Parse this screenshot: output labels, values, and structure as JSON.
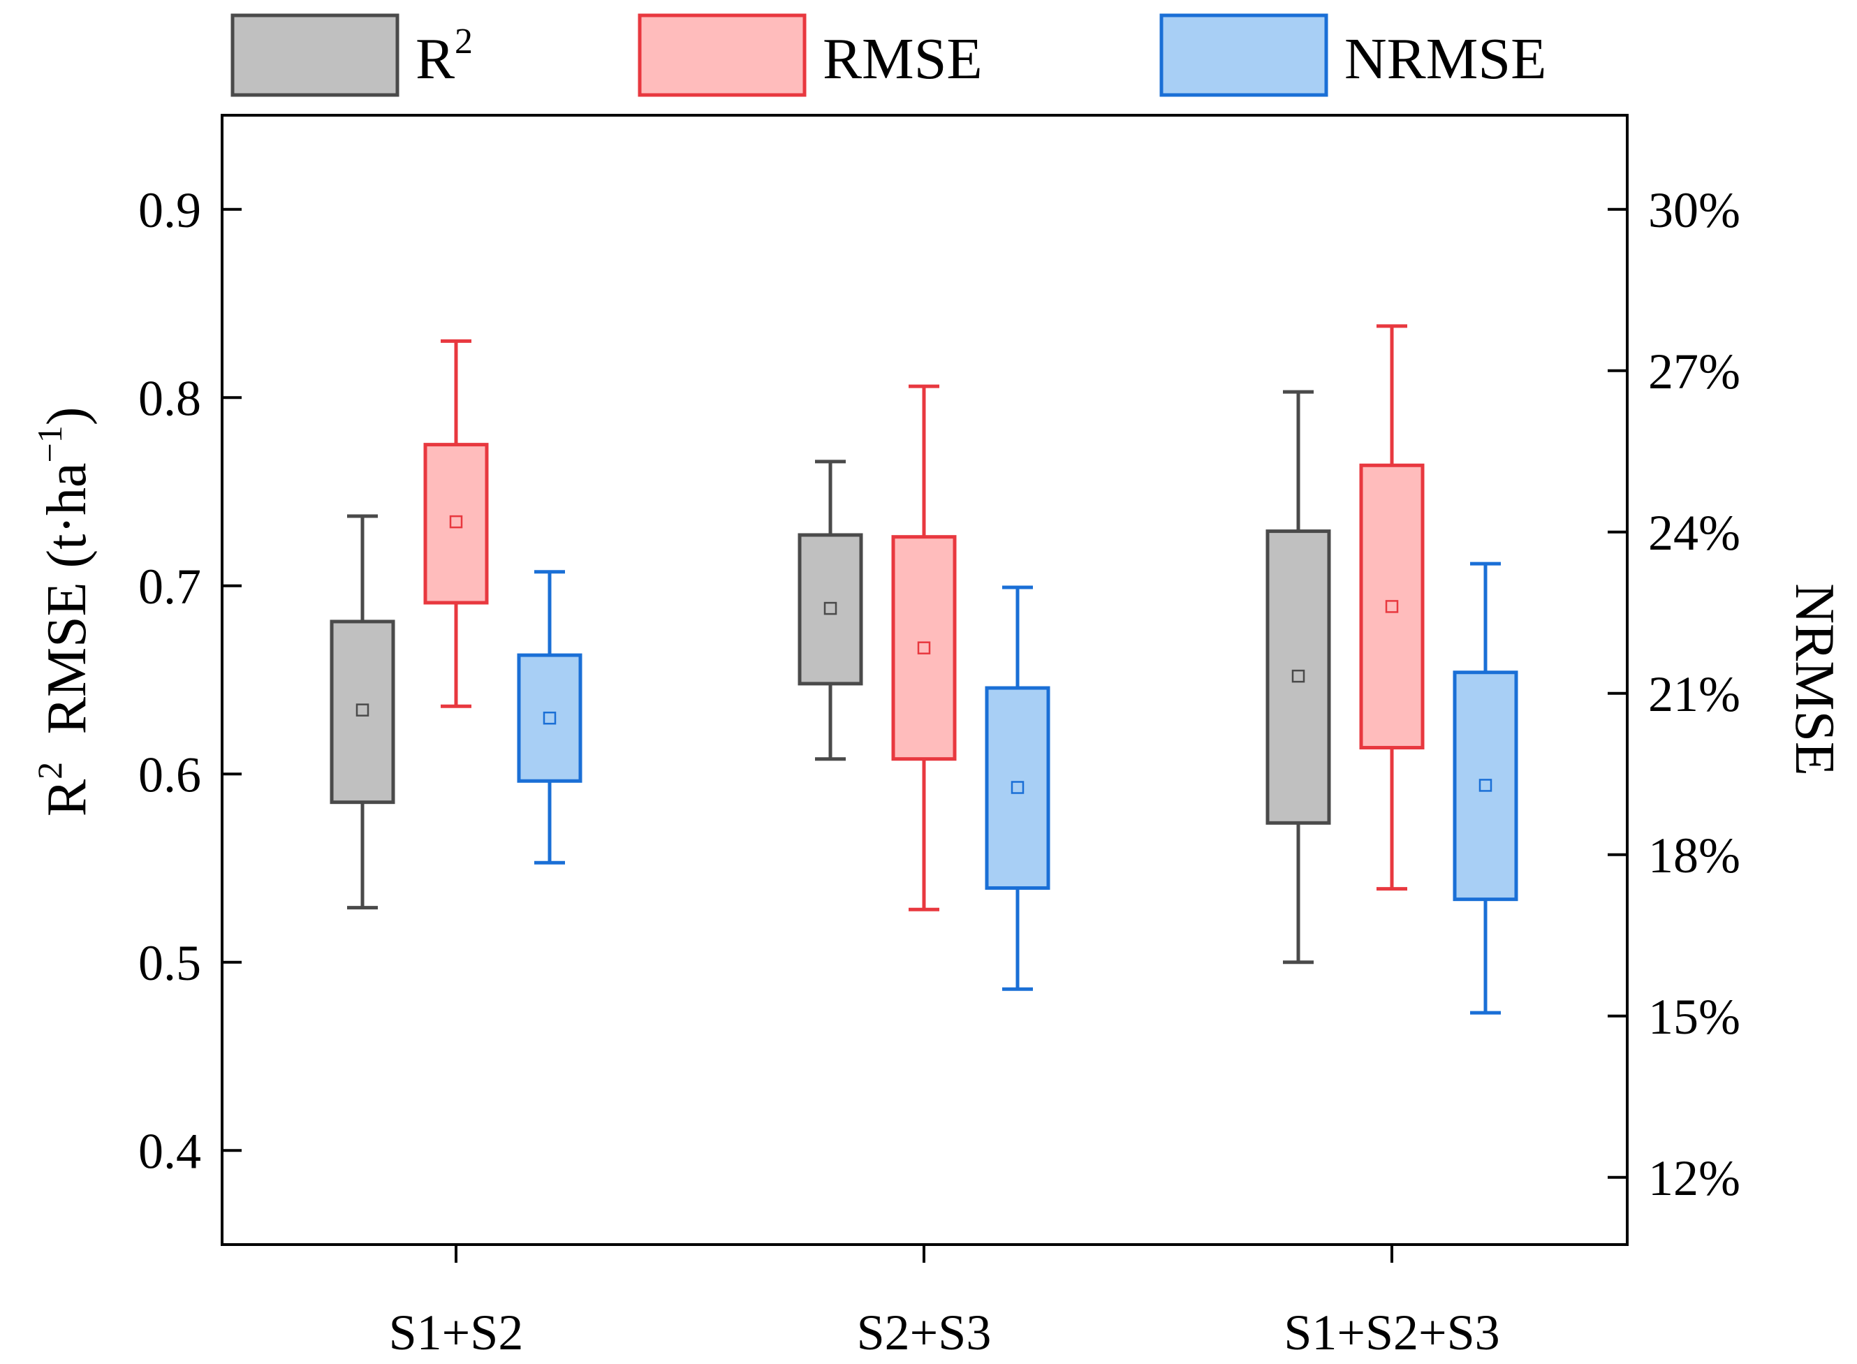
{
  "chart_data": {
    "type": "box",
    "categories": [
      "S1+S2",
      "S2+S3",
      "S1+S2+S3"
    ],
    "left_axis": {
      "label_line1": "RMSE (t·ha",
      "label_sup": "−1",
      "label_close": ")",
      "label_line2": "R",
      "label_line2_sup": "2",
      "ylim": [
        0.35,
        0.95
      ],
      "ticks": [
        0.4,
        0.5,
        0.6,
        0.7,
        0.8,
        0.9
      ],
      "tick_labels": [
        "0.4",
        "0.5",
        "0.6",
        "0.7",
        "0.8",
        "0.9"
      ]
    },
    "right_axis": {
      "label": "NRMSE",
      "ylim": [
        0.1075,
        0.3175
      ],
      "ticks": [
        0.12,
        0.15,
        0.18,
        0.21,
        0.24,
        0.27,
        0.3
      ],
      "tick_labels": [
        "12%",
        "15%",
        "18%",
        "21%",
        "24%",
        "27%",
        "30%"
      ]
    },
    "legend": {
      "placement": "top",
      "items": [
        {
          "label": "R",
          "sup": "2"
        },
        {
          "label": "RMSE",
          "sup": ""
        },
        {
          "label": "NRMSE",
          "sup": ""
        }
      ]
    },
    "series": [
      {
        "name": "R2",
        "axis": "left",
        "fill": "#c0c0c0",
        "stroke": "#4a4a4a",
        "boxes": [
          {
            "min": 0.529,
            "q1": 0.585,
            "q3": 0.681,
            "max": 0.737,
            "mean": 0.634
          },
          {
            "min": 0.608,
            "q1": 0.648,
            "q3": 0.727,
            "max": 0.766,
            "mean": 0.688
          },
          {
            "min": 0.5,
            "q1": 0.574,
            "q3": 0.729,
            "max": 0.803,
            "mean": 0.652
          }
        ]
      },
      {
        "name": "RMSE",
        "axis": "left",
        "fill": "#ffbcbc",
        "stroke": "#e8383f",
        "boxes": [
          {
            "min": 0.636,
            "q1": 0.691,
            "q3": 0.775,
            "max": 0.83,
            "mean": 0.734
          },
          {
            "min": 0.528,
            "q1": 0.608,
            "q3": 0.726,
            "max": 0.806,
            "mean": 0.667
          },
          {
            "min": 0.539,
            "q1": 0.614,
            "q3": 0.764,
            "max": 0.838,
            "mean": 0.689
          }
        ]
      },
      {
        "name": "NRMSE",
        "axis": "right",
        "fill": "#a8cff5",
        "stroke": "#1a6fd6",
        "boxes": [
          {
            "min": 0.1785,
            "q1": 0.1937,
            "q3": 0.2171,
            "max": 0.2326,
            "mean": 0.2054
          },
          {
            "min": 0.155,
            "q1": 0.1738,
            "q3": 0.211,
            "max": 0.2297,
            "mean": 0.1925
          },
          {
            "min": 0.1506,
            "q1": 0.1717,
            "q3": 0.2139,
            "max": 0.2341,
            "mean": 0.1929
          }
        ]
      }
    ]
  }
}
